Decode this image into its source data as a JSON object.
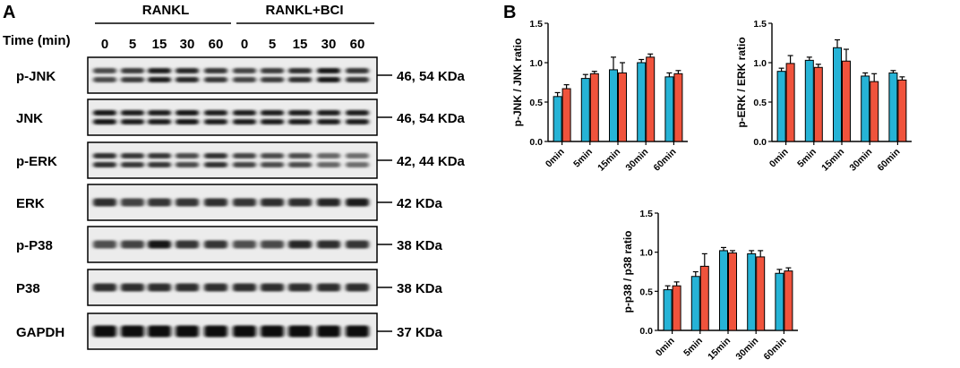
{
  "panelA": {
    "letter": "A",
    "group_labels": [
      "RANKL",
      "RANKL+BCI"
    ],
    "time_label": "Time (min)",
    "lanes": [
      "0",
      "5",
      "15",
      "30",
      "60",
      "0",
      "5",
      "15",
      "30",
      "60"
    ],
    "blots": [
      {
        "label": "p-JNK",
        "kda": "46, 54 KDa",
        "bands": [
          0.55,
          0.65,
          0.85,
          0.8,
          0.7,
          0.6,
          0.65,
          0.75,
          0.9,
          0.7
        ]
      },
      {
        "label": "JNK",
        "kda": "46, 54 KDa",
        "bands": [
          0.9,
          0.85,
          0.85,
          0.9,
          0.85,
          0.85,
          0.85,
          0.85,
          0.85,
          0.85
        ]
      },
      {
        "label": "p-ERK",
        "kda": "42, 44 KDa",
        "bands": [
          0.75,
          0.7,
          0.7,
          0.55,
          0.75,
          0.6,
          0.55,
          0.55,
          0.35,
          0.3
        ]
      },
      {
        "label": "ERK",
        "kda": "42 KDa",
        "bands": [
          0.75,
          0.6,
          0.7,
          0.7,
          0.75,
          0.7,
          0.75,
          0.75,
          0.8,
          0.85
        ]
      },
      {
        "label": "p-P38",
        "kda": "38 KDa",
        "bands": [
          0.5,
          0.6,
          0.9,
          0.7,
          0.7,
          0.5,
          0.55,
          0.8,
          0.75,
          0.7
        ]
      },
      {
        "label": "P38",
        "kda": "38 KDa",
        "bands": [
          0.75,
          0.75,
          0.75,
          0.75,
          0.75,
          0.75,
          0.75,
          0.75,
          0.75,
          0.75
        ]
      },
      {
        "label": "GAPDH",
        "kda": "37 KDa",
        "bands": [
          1.0,
          1.0,
          1.0,
          1.0,
          1.0,
          1.0,
          1.0,
          1.0,
          1.0,
          1.0
        ]
      }
    ]
  },
  "panelB": {
    "letter": "B"
  },
  "colors": {
    "series1": "#26b3d6",
    "series2": "#f0533c"
  },
  "chart_data": [
    {
      "type": "bar",
      "ylabel": "p-JNK / JNK ratio",
      "categories": [
        "0min",
        "5min",
        "15min",
        "30min",
        "60min"
      ],
      "ylim": [
        0,
        1.5
      ],
      "yticks": [
        "0.0",
        "0.5",
        "1.0",
        "1.5"
      ],
      "series": [
        {
          "values": [
            0.57,
            0.8,
            0.91,
            1.0,
            0.82
          ],
          "errors": [
            0.05,
            0.05,
            0.16,
            0.04,
            0.05
          ]
        },
        {
          "values": [
            0.67,
            0.86,
            0.87,
            1.07,
            0.86
          ],
          "errors": [
            0.05,
            0.03,
            0.13,
            0.04,
            0.04
          ]
        }
      ]
    },
    {
      "type": "bar",
      "ylabel": "p-ERK / ERK ratio",
      "categories": [
        "0min",
        "5min",
        "15min",
        "30min",
        "60min"
      ],
      "ylim": [
        0,
        1.5
      ],
      "yticks": [
        "0.0",
        "0.5",
        "1.0",
        "1.5"
      ],
      "series": [
        {
          "values": [
            0.89,
            1.03,
            1.19,
            0.83,
            0.87
          ],
          "errors": [
            0.04,
            0.04,
            0.1,
            0.04,
            0.03
          ]
        },
        {
          "values": [
            0.99,
            0.94,
            1.02,
            0.76,
            0.78
          ],
          "errors": [
            0.1,
            0.04,
            0.15,
            0.1,
            0.04
          ]
        }
      ]
    },
    {
      "type": "bar",
      "ylabel": "p-p38 / p38 ratio",
      "categories": [
        "0min",
        "5min",
        "15min",
        "30min",
        "60min"
      ],
      "ylim": [
        0,
        1.5
      ],
      "yticks": [
        "0.0",
        "0.5",
        "1.0",
        "1.5"
      ],
      "series": [
        {
          "values": [
            0.52,
            0.69,
            1.02,
            0.98,
            0.73
          ],
          "errors": [
            0.05,
            0.06,
            0.04,
            0.04,
            0.05
          ]
        },
        {
          "values": [
            0.57,
            0.82,
            0.99,
            0.94,
            0.76
          ],
          "errors": [
            0.05,
            0.16,
            0.03,
            0.08,
            0.04
          ]
        }
      ]
    }
  ]
}
